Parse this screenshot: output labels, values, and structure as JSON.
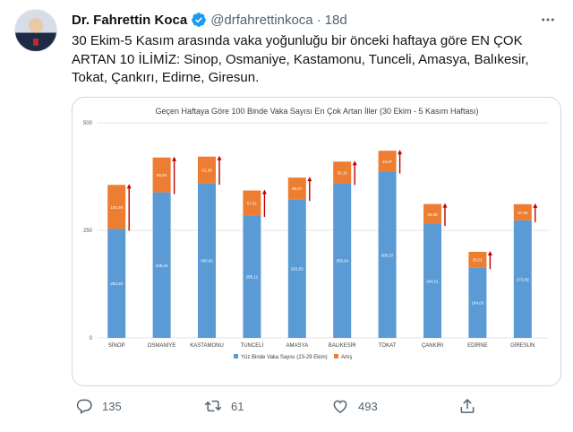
{
  "author": {
    "name": "Dr. Fahrettin Koca",
    "handle": "@drfahrettinkoca",
    "separator": "·",
    "time": "18d",
    "verified_icon": "verified-badge-icon"
  },
  "tweet_text": "30 Ekim-5 Kasım arasında vaka yoğunluğu bir önceki haftaya göre EN ÇOK ARTAN 10 İLİMİZ: Sinop, Osmaniye, Kastamonu, Tunceli, Amasya, Balıkesir, Tokat, Çankırı, Edirne, Giresun.",
  "actions": {
    "reply_count": "135",
    "retweet_count": "61",
    "like_count": "493",
    "icons": [
      "reply-icon",
      "retweet-icon",
      "like-icon",
      "share-icon"
    ]
  },
  "chart_data": {
    "type": "bar",
    "stacked": true,
    "title": "Geçen Haftaya Göre 100 Binde Vaka Sayısı En Çok Artan İller (30 Ekim - 5 Kasım Haftası)",
    "categories": [
      "SİNOP",
      "OSMANİYE",
      "KASTAMONU",
      "TUNCELİ",
      "AMASYA",
      "BALIKESİR",
      "TOKAT",
      "ÇANKIRI",
      "EDİRNE",
      "GİRESUN"
    ],
    "series": [
      {
        "name": "Yüz Binde Vaka Sayısı (23-29 Ekim)",
        "color": "#5b9bd5",
        "values": [
          253.34,
          338.34,
          360.01,
          285.11,
          322.53,
          359.64,
          386.37,
          264.51,
          164.03,
          273.09
        ],
        "labels": [
          "253,34",
          "338,34",
          "360,01",
          "285,11",
          "322,53",
          "359,64",
          "386,37",
          "264,51",
          "164,03",
          "273,09"
        ]
      },
      {
        "name": "Artış",
        "color": "#ed7d31",
        "values": [
          102.29,
          80.94,
          61.38,
          57.51,
          50.07,
          50.15,
          48.67,
          46.66,
          36.01,
          37.66
        ],
        "labels": [
          "102,29",
          "80,94",
          "61,38",
          "57,51",
          "50,07",
          "50,15",
          "48,67",
          "46,66",
          "36,01",
          "37,66"
        ]
      }
    ],
    "y_ticks": [
      "0",
      "250",
      "500"
    ],
    "ylim": [
      0,
      500
    ],
    "grid": true,
    "legend_position": "bottom",
    "arrow_color": "#c00000"
  }
}
